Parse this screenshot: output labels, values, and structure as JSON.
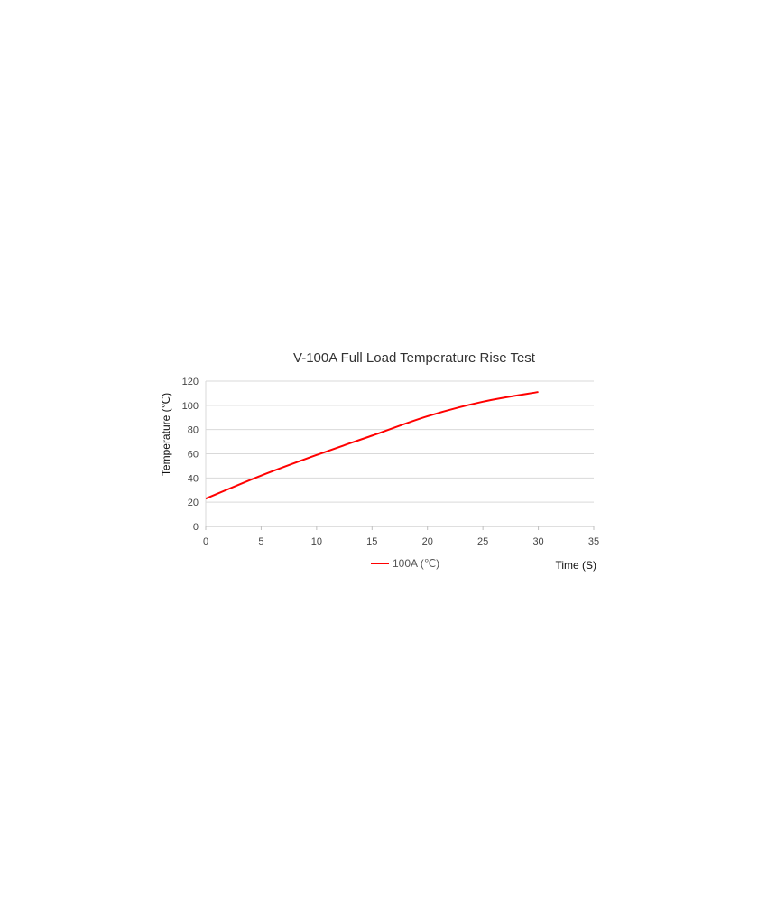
{
  "chart_data": {
    "type": "line",
    "title": "V-100A Full Load Temperature Rise Test",
    "xlabel": "Time (S)",
    "ylabel": "Temperature (℃)",
    "xlim": [
      0,
      35
    ],
    "ylim": [
      0,
      120
    ],
    "xticks": [
      0,
      5,
      10,
      15,
      20,
      25,
      30,
      35
    ],
    "yticks": [
      0,
      20,
      40,
      60,
      80,
      100,
      120
    ],
    "grid": "horizontal",
    "legend": "bottom",
    "series": [
      {
        "name": "100A (℃)",
        "color": "#ff0000",
        "x": [
          0,
          5,
          10,
          15,
          20,
          25,
          30
        ],
        "y": [
          23,
          42,
          59,
          75,
          91,
          103,
          111
        ]
      }
    ]
  }
}
